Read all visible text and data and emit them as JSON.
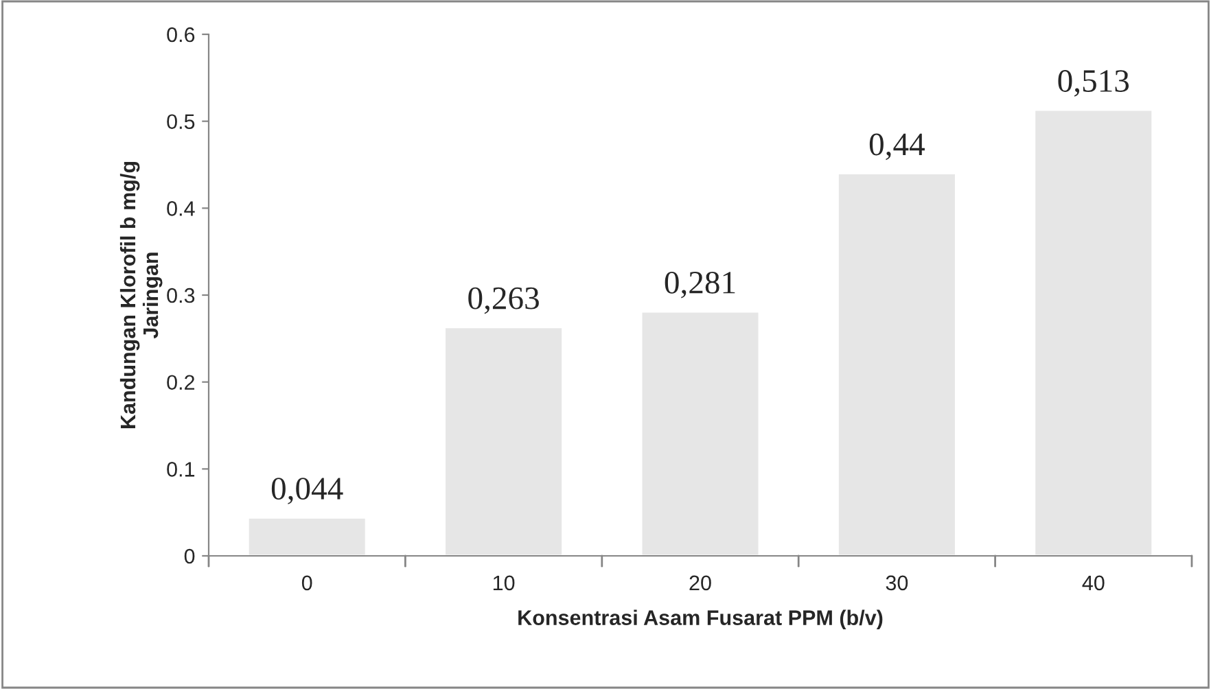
{
  "chart_data": {
    "type": "bar",
    "xlabel": "Konsentrasi Asam Fusarat PPM (b/v)",
    "ylabel": "Kandungan Klorofil b mg/g\nJaringan",
    "categories": [
      "0",
      "10",
      "20",
      "30",
      "40"
    ],
    "values": [
      0.044,
      0.263,
      0.281,
      0.44,
      0.513
    ],
    "value_labels": [
      "0,044",
      "0,263",
      "0,281",
      "0,44",
      "0,513"
    ],
    "color": "#e6e6e6",
    "ylim": [
      0,
      0.6
    ],
    "yticks": [
      0,
      0.1,
      0.2,
      0.3,
      0.4,
      0.5,
      0.6
    ],
    "grid": false
  }
}
